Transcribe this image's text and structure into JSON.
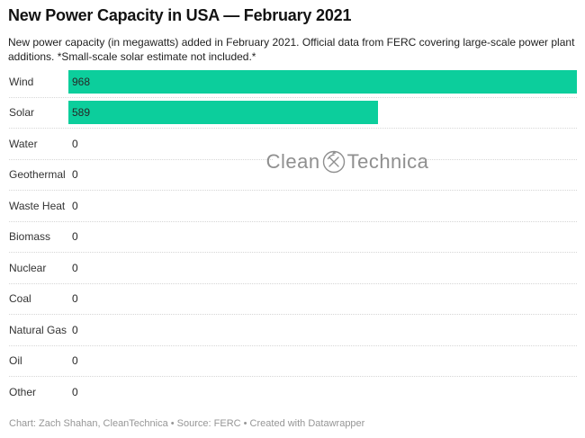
{
  "header": {
    "title": "New Power Capacity in USA — February 2021",
    "subtitle": "New power capacity (in megawatts) added in February 2021. Official data from FERC covering large-scale power plant additions. *Small-scale solar estimate not included.*"
  },
  "chart_data": {
    "type": "bar",
    "orientation": "horizontal",
    "title": "New Power Capacity in USA — February 2021",
    "xlabel": "",
    "ylabel": "",
    "categories": [
      "Wind",
      "Solar",
      "Water",
      "Geothermal",
      "Waste Heat",
      "Biomass",
      "Nuclear",
      "Coal",
      "Natural Gas",
      "Oil",
      "Other"
    ],
    "values": [
      968,
      589,
      0,
      0,
      0,
      0,
      0,
      0,
      0,
      0,
      0
    ],
    "xlim": [
      0,
      968
    ],
    "grid": false,
    "legend": false,
    "value_labels": "inside-left",
    "bar_color": "#0cce9c",
    "separator_style": "dotted"
  },
  "watermark": {
    "left": "Clean",
    "right": "Technica",
    "icon": "hammer-pick-circle-icon"
  },
  "footer": {
    "text": "Chart: Zach Shahan, CleanTechnica • Source: FERC • Created with Datawrapper"
  }
}
